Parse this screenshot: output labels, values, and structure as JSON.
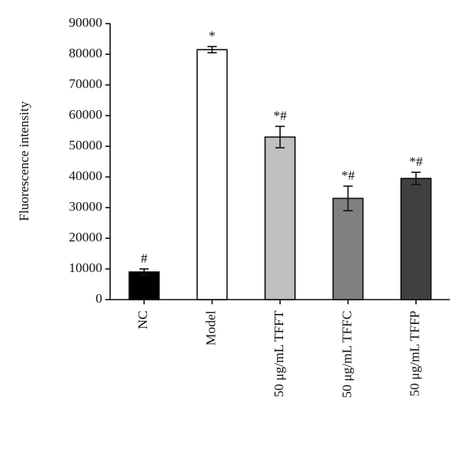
{
  "chart_data": {
    "type": "bar",
    "y_label": "Fluorescence intensity",
    "categories": [
      "NC",
      "Model",
      "50 μg/mL TFFT",
      "50 μg/mL TFFC",
      "50 μg/mL TFFP"
    ],
    "values": [
      9000,
      81500,
      53000,
      33000,
      39500
    ],
    "errors": [
      1000,
      1000,
      3500,
      4000,
      2000
    ],
    "annotations": [
      "#",
      "*",
      "*#",
      "*#",
      "*#"
    ],
    "colors": [
      "#000000",
      "#ffffff",
      "#c0c0c0",
      "#808080",
      "#404040"
    ],
    "ylim": [
      0,
      90000
    ],
    "yticks": [
      0,
      10000,
      20000,
      30000,
      40000,
      50000,
      60000,
      70000,
      80000,
      90000
    ]
  }
}
